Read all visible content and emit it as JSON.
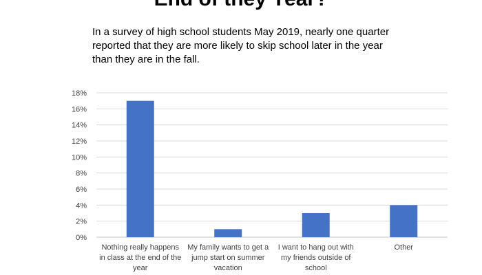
{
  "title": "End of they Year?",
  "subtitle_lines": [
    "In a survey of high school students May 2019, nearly one quarter",
    "reported that they are more likely to skip school later in the year",
    "than they are in the fall."
  ],
  "colors": {
    "bar": "#4472c4",
    "grid": "#d9d9d9",
    "axis": "#bfbfbf"
  },
  "chart_data": {
    "type": "bar",
    "title": "",
    "xlabel": "",
    "ylabel": "",
    "categories": [
      "Nothing really happens in class at the end of the year",
      "My family wants to get a jump start on summer vacation",
      "I want to hang out with my friends outside of school",
      "Other"
    ],
    "category_label_lines": [
      [
        "Nothing really happens",
        "in class at the end of the",
        "year"
      ],
      [
        "My family wants to get a",
        "jump start on summer",
        "vacation"
      ],
      [
        "I want to hang out with",
        "my friends outside of",
        "school"
      ],
      [
        "Other"
      ]
    ],
    "values": [
      17,
      1,
      3,
      4
    ],
    "value_unit": "%",
    "ylim": [
      0,
      18
    ],
    "yticks": [
      0,
      2,
      4,
      6,
      8,
      10,
      12,
      14,
      16,
      18
    ],
    "ytick_labels": [
      "0%",
      "2%",
      "4%",
      "6%",
      "8%",
      "10%",
      "12%",
      "14%",
      "16%",
      "18%"
    ],
    "grid": true,
    "legend": "none"
  }
}
